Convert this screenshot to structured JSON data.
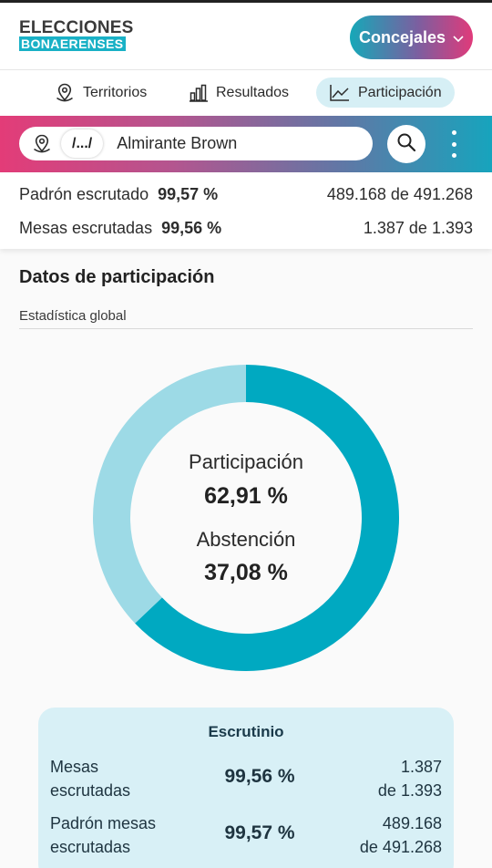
{
  "header": {
    "logo_top": "ELECCIONES",
    "logo_bottom": "BONAERENSES",
    "category_button": "Concejales",
    "category_chevron": "chevron-down-icon"
  },
  "tabs": [
    {
      "label": "Territorios",
      "icon": "map-pin-icon",
      "active": false
    },
    {
      "label": "Resultados",
      "icon": "bar-chart-icon",
      "active": false
    },
    {
      "label": "Participación",
      "icon": "line-chart-icon",
      "active": true
    }
  ],
  "search": {
    "breadcrumb": "/.../",
    "location": "Almirante Brown"
  },
  "stats": {
    "padron_label": "Padrón escrutado",
    "padron_pct": "99,57 %",
    "padron_count": "489.168 de 491.268",
    "mesas_label": "Mesas escrutadas",
    "mesas_pct": "99,56 %",
    "mesas_count": "1.387 de 1.393"
  },
  "section": {
    "title": "Datos de participación",
    "subtitle": "Estadística global"
  },
  "donut": {
    "participacion_label": "Participación",
    "participacion_value": "62,91 %",
    "participacion_pct": 62.91,
    "abstencion_label": "Abstención",
    "abstencion_value": "37,08 %",
    "abstencion_pct": 37.08,
    "colors": {
      "participacion": "#00a9c1",
      "abstencion": "#9ddae6"
    }
  },
  "scrutiny": {
    "title": "Escrutinio",
    "rows": [
      {
        "label_line1": "Mesas",
        "label_line2": "escrutadas",
        "value": "99,56 %",
        "count_line1": "1.387",
        "count_line2": "de 1.393"
      },
      {
        "label_line1": "Padrón mesas",
        "label_line2": "escrutadas",
        "value": "99,57 %",
        "count_line1": "489.168",
        "count_line2": "de 491.268"
      }
    ]
  },
  "colors": {
    "accent": "#19b1c6",
    "gradient_start": "#e33c78",
    "gradient_end": "#17a4bd",
    "card_bg": "#d8f0f6"
  }
}
